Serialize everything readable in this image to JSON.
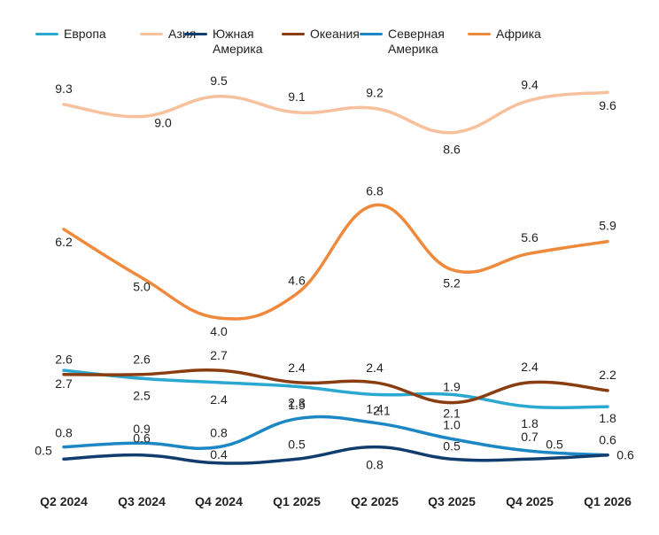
{
  "chart_data": {
    "type": "line",
    "categories": [
      "Q2 2024",
      "Q3 2024",
      "Q4 2024",
      "Q1 2025",
      "Q2 2025",
      "Q3 2025",
      "Q4 2025",
      "Q1 2026"
    ],
    "series": [
      {
        "name": "Европа",
        "color": "#2aa8cf",
        "values": [
          2.7,
          2.5,
          2.4,
          2.3,
          2.1,
          2.1,
          1.8,
          1.8
        ]
      },
      {
        "name": "Азия",
        "color": "#f7c19d",
        "values": [
          9.3,
          9.0,
          9.5,
          9.1,
          9.2,
          8.6,
          9.4,
          9.6
        ]
      },
      {
        "name": "Южная Америка",
        "color": "#113d6e",
        "values": [
          0.5,
          0.6,
          0.4,
          0.5,
          0.8,
          0.5,
          0.5,
          0.6
        ]
      },
      {
        "name": "Океания",
        "color": "#8a3d10",
        "values": [
          2.6,
          2.6,
          2.7,
          2.4,
          2.4,
          1.9,
          2.4,
          2.2
        ]
      },
      {
        "name": "Северная Америка",
        "color": "#1c87c4",
        "values": [
          0.8,
          0.9,
          0.8,
          1.5,
          1.4,
          1.0,
          0.7,
          0.6
        ]
      },
      {
        "name": "Африка",
        "color": "#ef8a3c",
        "values": [
          6.2,
          5.0,
          4.0,
          4.6,
          6.8,
          5.2,
          5.6,
          5.9
        ]
      }
    ],
    "legend_position": "top",
    "grid": false
  }
}
